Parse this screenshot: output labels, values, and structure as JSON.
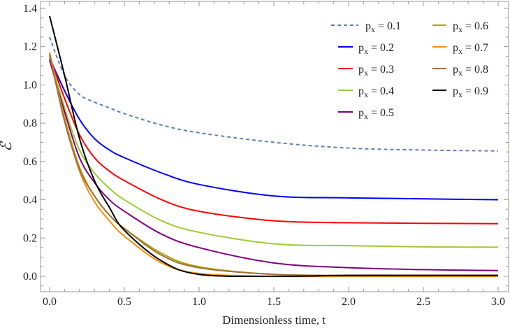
{
  "chart_data": {
    "type": "line",
    "title": "",
    "xlabel": "Dimensionless time, t",
    "ylabel": "ℰ",
    "xlim": [
      0,
      3.0
    ],
    "ylim": [
      -0.07,
      1.52
    ],
    "xticks": [
      "0.0",
      "0.5",
      "1.0",
      "1.5",
      "2.0",
      "2.5",
      "3.0"
    ],
    "yticks": [
      "0.0",
      "0.2",
      "0.4",
      "0.6",
      "0.8",
      "1.0",
      "1.2",
      "1.4"
    ],
    "grid": false,
    "legend_placement": "top-right",
    "x": [
      0,
      0.1,
      0.2,
      0.3,
      0.4,
      0.5,
      0.75,
      1.0,
      1.5,
      2.0,
      2.5,
      3.0
    ],
    "series": [
      {
        "name": "p<sub>x</sub> = 0.1",
        "label_main": "p",
        "label_sub": "x",
        "label_rest": " = 0.1",
        "color": "#5E81B5",
        "dashed": true,
        "values": [
          1.25,
          1.05,
          0.95,
          0.91,
          0.88,
          0.85,
          0.79,
          0.75,
          0.7,
          0.67,
          0.66,
          0.655
        ]
      },
      {
        "label_main": "p",
        "label_sub": "x",
        "label_rest": " = 0.2",
        "color": "#0000FF",
        "dashed": false,
        "values": [
          1.14,
          0.97,
          0.82,
          0.72,
          0.66,
          0.62,
          0.54,
          0.48,
          0.42,
          0.41,
          0.405,
          0.4
        ]
      },
      {
        "label_main": "p",
        "label_sub": "x",
        "label_rest": " = 0.3",
        "color": "#FF0000",
        "dashed": false,
        "values": [
          1.15,
          0.93,
          0.74,
          0.62,
          0.55,
          0.5,
          0.4,
          0.34,
          0.29,
          0.28,
          0.277,
          0.275
        ]
      },
      {
        "label_main": "p",
        "label_sub": "x",
        "label_rest": " = 0.4",
        "color": "#9ACD32",
        "dashed": false,
        "values": [
          1.15,
          0.88,
          0.66,
          0.54,
          0.46,
          0.4,
          0.29,
          0.23,
          0.17,
          0.16,
          0.154,
          0.152
        ]
      },
      {
        "label_main": "p",
        "label_sub": "x",
        "label_rest": " = 0.5",
        "color": "#800080",
        "dashed": false,
        "values": [
          1.13,
          0.86,
          0.62,
          0.49,
          0.4,
          0.34,
          0.22,
          0.15,
          0.07,
          0.045,
          0.035,
          0.03
        ]
      },
      {
        "label_main": "p",
        "label_sub": "x",
        "label_rest": " = 0.6",
        "color": "#ABAB00",
        "dashed": false,
        "values": [
          1.16,
          0.83,
          0.57,
          0.42,
          0.32,
          0.25,
          0.12,
          0.05,
          0.01,
          0.005,
          0.005,
          0.005
        ]
      },
      {
        "label_main": "p",
        "label_sub": "x",
        "label_rest": " = 0.7",
        "color": "#FF8C00",
        "dashed": false,
        "values": [
          1.17,
          0.82,
          0.55,
          0.39,
          0.29,
          0.21,
          0.07,
          0.015,
          0.0,
          0.0,
          0.0,
          0.0
        ]
      },
      {
        "label_main": "p",
        "label_sub": "x",
        "label_rest": " = 0.8",
        "color": "#A0703C",
        "dashed": false,
        "values": [
          1.16,
          0.81,
          0.56,
          0.42,
          0.32,
          0.25,
          0.11,
          0.045,
          0.01,
          0.005,
          0.005,
          0.005
        ]
      },
      {
        "label_main": "p",
        "label_sub": "x",
        "label_rest": " = 0.9",
        "color": "#000000",
        "dashed": false,
        "values": [
          1.36,
          1.05,
          0.72,
          0.5,
          0.36,
          0.24,
          0.08,
          0.01,
          0.0,
          0.005,
          0.005,
          0.005
        ]
      }
    ]
  }
}
